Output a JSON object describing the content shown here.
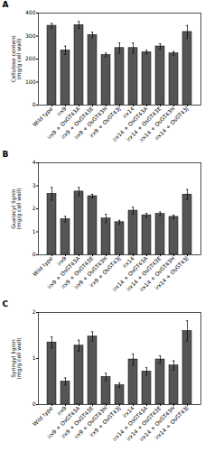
{
  "chart_data": [
    {
      "type": "bar",
      "title": "A",
      "categories": [
        "Wild type",
        "irx9",
        "irx9 + OsGT43A",
        "irx9 + OsGT43E",
        "irx9 + OsGT43H",
        "irx9 + OsGT43J",
        "irx14",
        "irx14 + OsGT43A",
        "irx14 + OsGT43E",
        "irx14 + OsGT43H",
        "irx14 + OsGT43J"
      ],
      "values": [
        345,
        238,
        348,
        305,
        218,
        248,
        248,
        230,
        255,
        225,
        318
      ],
      "errors": [
        10,
        18,
        15,
        12,
        8,
        22,
        22,
        8,
        12,
        8,
        28
      ],
      "ylabel": "Cellulose content\n(mg/g cell wall)",
      "color": "#555555",
      "ylim": [
        0,
        400
      ],
      "yticks": [
        0,
        100,
        200,
        300,
        400
      ],
      "grid": false
    },
    {
      "type": "bar",
      "title": "B",
      "categories": [
        "Wild type",
        "irx9",
        "irx9 + OsGT43A",
        "irx9 + OsGT43E",
        "irx9 + OsGT43H",
        "irx9 + OsGT43J",
        "irx14",
        "irx14 + OsGT43A",
        "irx14 + OsGT43E",
        "irx14 + OsGT43H",
        "irx14 + OsGT43J"
      ],
      "values": [
        2.65,
        1.55,
        2.75,
        2.55,
        1.58,
        1.42,
        1.92,
        1.72,
        1.78,
        1.65,
        2.62
      ],
      "errors": [
        0.28,
        0.12,
        0.18,
        0.08,
        0.18,
        0.08,
        0.15,
        0.08,
        0.08,
        0.08,
        0.22
      ],
      "ylabel": "Guaiacyl lignin\n(mg/g cell wall)",
      "color": "#555555",
      "ylim": [
        0,
        4
      ],
      "yticks": [
        0,
        1,
        2,
        3,
        4
      ],
      "grid": false
    },
    {
      "type": "bar",
      "title": "C",
      "categories": [
        "Wild type",
        "irx9",
        "irx9 + OsGT43A",
        "irx9 + OsGT43E",
        "irx9 + OsGT43H",
        "irx9 + OsGT43J",
        "irx14",
        "irx14 + OsGT43A",
        "irx14 + OsGT43E",
        "irx14 + OsGT43H",
        "irx14 + OsGT43J"
      ],
      "values": [
        1.35,
        0.5,
        1.28,
        1.48,
        0.6,
        0.42,
        0.98,
        0.72,
        0.98,
        0.85,
        1.6
      ],
      "errors": [
        0.12,
        0.08,
        0.12,
        0.1,
        0.08,
        0.05,
        0.12,
        0.08,
        0.08,
        0.1,
        0.22
      ],
      "ylabel": "Syringyl lignin\n(mg/g cell wall)",
      "color": "#555555",
      "ylim": [
        0,
        2
      ],
      "yticks": [
        0,
        1,
        2
      ],
      "grid": false
    }
  ]
}
